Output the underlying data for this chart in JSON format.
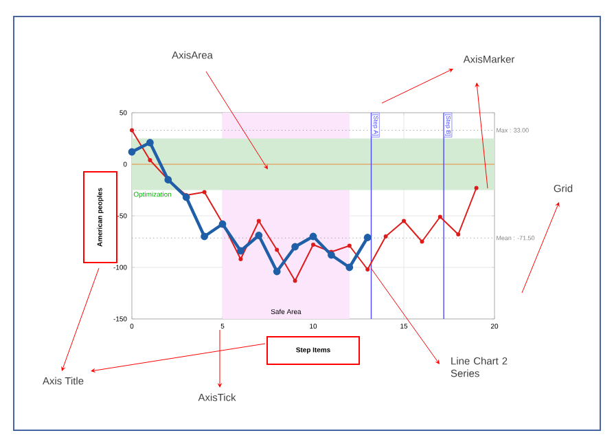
{
  "chart_data": {
    "type": "line",
    "xlabel": "Step Items",
    "ylabel": "American peoples",
    "x": [
      0,
      1,
      2,
      3,
      4,
      5,
      6,
      7,
      8,
      9,
      10,
      11,
      12,
      13,
      14,
      15,
      16,
      17,
      18,
      19
    ],
    "series": [
      {
        "color": "#dd1c1c",
        "values": [
          33,
          4,
          -15,
          -30,
          -27,
          -57,
          -92,
          -55,
          -83,
          -113,
          -78,
          -85,
          -79,
          -102,
          -70,
          -55,
          -75,
          -51,
          -68,
          -23
        ]
      },
      {
        "color": "#1f5fa8",
        "values": [
          12,
          21,
          -15,
          -32,
          -70,
          -58,
          -84,
          -69,
          -104,
          -80,
          -70,
          -88,
          -100,
          -71,
          null,
          null,
          null,
          null,
          null,
          null
        ]
      }
    ],
    "xlim": [
      0,
      20
    ],
    "ylim": [
      -150,
      50
    ],
    "xticks": [
      0,
      5,
      10,
      15,
      20
    ],
    "yticks": [
      -150,
      -100,
      -50,
      0,
      50
    ],
    "grid": true,
    "marker": "circle",
    "line_style": "solid",
    "ref_lines": [
      {
        "axis": "y",
        "value": 0,
        "color": "#e8893a",
        "line_style": "solid"
      },
      {
        "axis": "y",
        "value": 33,
        "label": "Max : 33.00",
        "color": "#999999",
        "line_style": "dotted"
      },
      {
        "axis": "y",
        "value": -71.5,
        "label": "Mean : -71.50",
        "color": "#999999",
        "line_style": "dotted"
      },
      {
        "axis": "x",
        "value": 13.2,
        "label": "[Step A]",
        "color": "#4a4aff",
        "line_style": "solid"
      },
      {
        "axis": "x",
        "value": 17.2,
        "label": "[Step B]",
        "color": "#4a4aff",
        "line_style": "solid"
      }
    ],
    "bands": [
      {
        "axis": "x",
        "from": 5,
        "to": 12,
        "label": "Safe Area",
        "color": "#fbe6fb"
      },
      {
        "axis": "y",
        "from": -25,
        "to": 25,
        "label": "Optimization",
        "color": "#d3ead3"
      }
    ],
    "annotations": [
      {
        "text": "AxisArea",
        "x": 7.5,
        "y": -5
      },
      "AxisMarker",
      "Grid",
      "Axis Title",
      "AxisTick",
      "Line Chart 2 Series"
    ]
  }
}
